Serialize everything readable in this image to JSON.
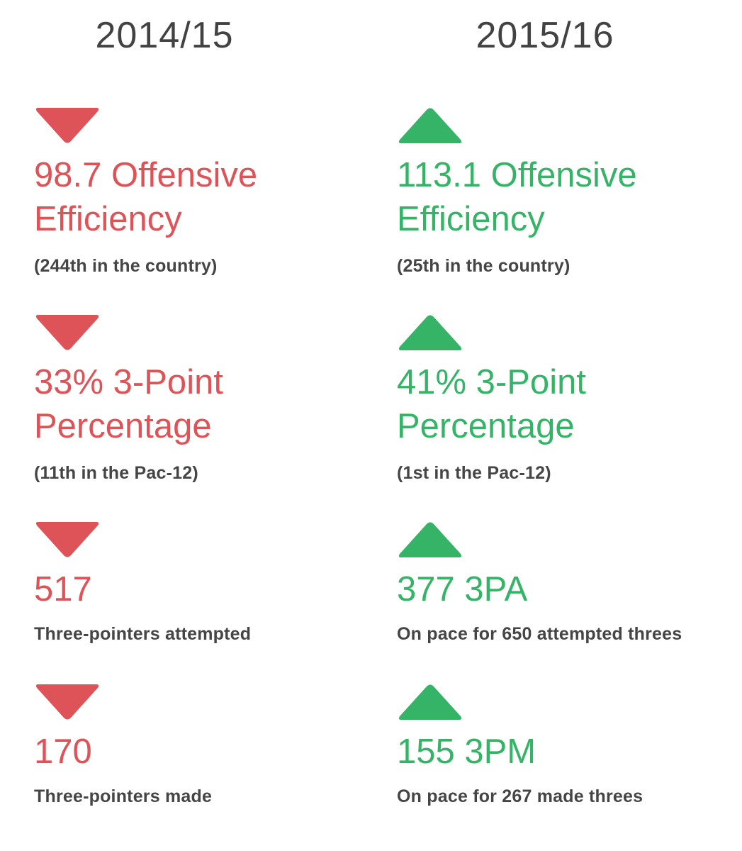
{
  "colors": {
    "down": "#dd5358",
    "up": "#35b468",
    "text": "#424242"
  },
  "seasons": [
    {
      "title": "2014/15",
      "direction": "down",
      "stats": [
        {
          "headline_1": "98.7 Offensive",
          "headline_2": "Efficiency",
          "note": "(244th in the country)"
        },
        {
          "headline_1": "33% 3-Point",
          "headline_2": "Percentage",
          "note": "(11th in the Pac-12)"
        },
        {
          "headline_1": "517",
          "note": "Three-pointers attempted"
        },
        {
          "headline_1": "170",
          "note": "Three-pointers made"
        }
      ]
    },
    {
      "title": "2015/16",
      "direction": "up",
      "stats": [
        {
          "headline_1": "113.1 Offensive",
          "headline_2": "Efficiency",
          "note": "(25th in the country)"
        },
        {
          "headline_1": "41% 3-Point",
          "headline_2": "Percentage",
          "note": "(1st in the Pac-12)"
        },
        {
          "headline_1": "377 3PA",
          "note": "On pace for 650 attempted threes"
        },
        {
          "headline_1": "155 3PM",
          "note": "On pace for 267 made threes"
        }
      ]
    }
  ]
}
